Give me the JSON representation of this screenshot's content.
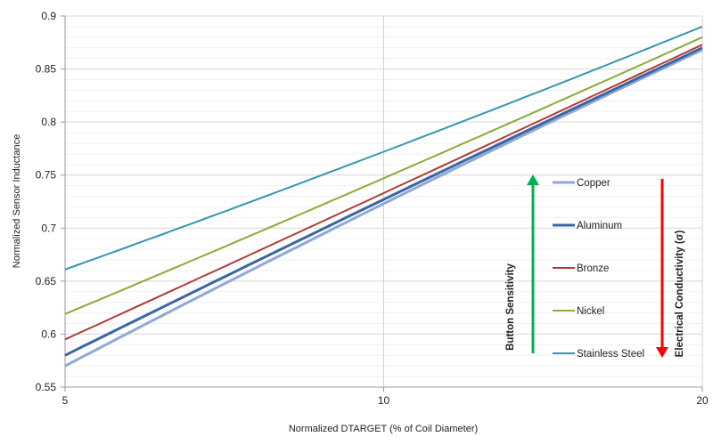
{
  "chart_data": {
    "type": "line",
    "title": "",
    "xlabel": "Normalized DTARGET  (% of Coil Diameter)",
    "ylabel": "Normalized Sensor Inductance",
    "x_scale": "log",
    "xlim": [
      5,
      20
    ],
    "ylim": [
      0.55,
      0.9
    ],
    "x_ticks": [
      "5",
      "10",
      "20"
    ],
    "y_ticks": [
      "0.55",
      "0.6",
      "0.65",
      "0.7",
      "0.75",
      "0.8",
      "0.85",
      "0.9"
    ],
    "grid": true,
    "legend_position": "right-inside",
    "x": [
      5,
      10,
      20
    ],
    "series": [
      {
        "name": "Copper",
        "color": "#8fa9d4",
        "values": [
          0.57,
          0.723,
          0.868
        ]
      },
      {
        "name": "Aluminum",
        "color": "#3a66a3",
        "values": [
          0.58,
          0.727,
          0.87
        ]
      },
      {
        "name": "Bronze",
        "color": "#b03a36",
        "values": [
          0.595,
          0.733,
          0.873
        ]
      },
      {
        "name": "Nickel",
        "color": "#8aab3c",
        "values": [
          0.619,
          0.747,
          0.88
        ]
      },
      {
        "name": "Stainless Steel",
        "color": "#3796b0",
        "values": [
          0.661,
          0.772,
          0.89
        ]
      }
    ],
    "annotations": [
      {
        "text": "Button Sensitivity",
        "color": "#00b050",
        "arrow": "up"
      },
      {
        "text": "Electrical Conductivity (σ)",
        "color": "#ff0000",
        "arrow": "down"
      }
    ]
  }
}
